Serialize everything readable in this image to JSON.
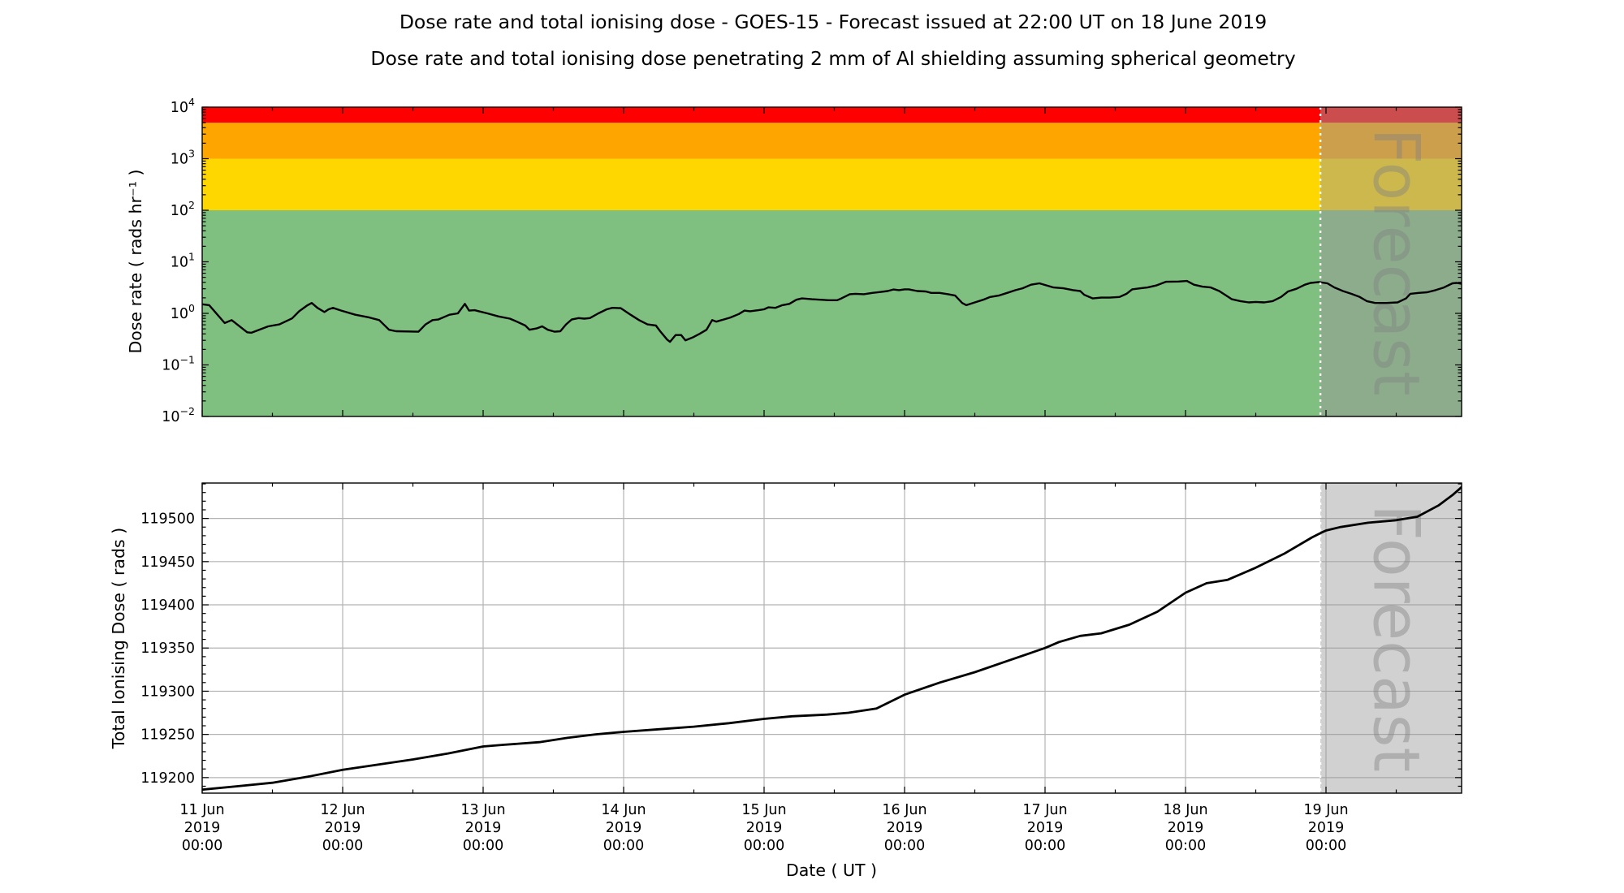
{
  "title_line1": "Dose rate and total ionising dose - GOES-15 - Forecast issued at 22:00 UT on 18 June 2019",
  "title_line2": "Dose rate and total ionising dose penetrating 2 mm of Al shielding assuming spherical geometry",
  "xlabel": "Date ( UT )",
  "top_panel": {
    "ylabel": "Dose rate ( rads hr⁻¹ )",
    "yscale": "log",
    "ytick_exponents": [
      -2,
      -1,
      0,
      1,
      2,
      3,
      4
    ],
    "bands": [
      {
        "name": "green-nominal",
        "from": 0.01,
        "to": 100,
        "color": "#7fbf7f"
      },
      {
        "name": "yellow-caution",
        "from": 100,
        "to": 1000,
        "color": "#ffd700"
      },
      {
        "name": "orange-warning",
        "from": 1000,
        "to": 5000,
        "color": "#ffa500"
      },
      {
        "name": "red-alert",
        "from": 5000,
        "to": 10000,
        "color": "#ff0000"
      }
    ],
    "watermark": "Forecast"
  },
  "bottom_panel": {
    "ylabel": "Total Ionising Dose ( rads )",
    "yticks": [
      119200,
      119250,
      119300,
      119350,
      119400,
      119450,
      119500
    ],
    "ylim": [
      119182,
      119541
    ],
    "grid": true,
    "watermark": "Forecast"
  },
  "x_axis": {
    "range_days": [
      0,
      8.97
    ],
    "minor_step_days": 0.5,
    "ticks": [
      {
        "t": 0,
        "lines": [
          "11 Jun",
          "2019",
          "00:00"
        ]
      },
      {
        "t": 1,
        "lines": [
          "12 Jun",
          "2019",
          "00:00"
        ]
      },
      {
        "t": 2,
        "lines": [
          "13 Jun",
          "2019",
          "00:00"
        ]
      },
      {
        "t": 3,
        "lines": [
          "14 Jun",
          "2019",
          "00:00"
        ]
      },
      {
        "t": 4,
        "lines": [
          "15 Jun",
          "2019",
          "00:00"
        ]
      },
      {
        "t": 5,
        "lines": [
          "16 Jun",
          "2019",
          "00:00"
        ]
      },
      {
        "t": 6,
        "lines": [
          "17 Jun",
          "2019",
          "00:00"
        ]
      },
      {
        "t": 7,
        "lines": [
          "18 Jun",
          "2019",
          "00:00"
        ]
      },
      {
        "t": 8,
        "lines": [
          "19 Jun",
          "2019",
          "00:00"
        ]
      }
    ]
  },
  "forecast": {
    "label": "Forecast",
    "start_t_days": 7.96,
    "end_t_days": 8.97
  },
  "colors": {
    "series_line": "#000000",
    "grid_line": "#b3b3b3",
    "forecast_overlay": "#999999",
    "watermark_text": "#808080",
    "forecast_divider": "#ffffff"
  },
  "chart_data": [
    {
      "type": "line",
      "panel": "top",
      "title": "Dose rate",
      "ylabel": "Dose rate ( rads hr⁻¹ )",
      "xlabel": "Date ( UT )",
      "yscale": "log",
      "ylim": [
        0.01,
        10000
      ],
      "x_unit": "days since 11 Jun 2019 00:00 UT",
      "xlim": [
        0,
        8.97
      ],
      "grid": false,
      "legend": "none",
      "threshold_bands": [
        {
          "label": "green",
          "from": 0.01,
          "to": 100
        },
        {
          "label": "yellow",
          "from": 100,
          "to": 1000
        },
        {
          "label": "orange",
          "from": 1000,
          "to": 5000
        },
        {
          "label": "red",
          "from": 5000,
          "to": 10000
        }
      ],
      "annotations": [
        {
          "type": "vline",
          "x": 7.96,
          "label": "forecast start"
        },
        {
          "type": "region",
          "from": 7.96,
          "to": 8.97,
          "label": "Forecast"
        }
      ],
      "series": [
        {
          "name": "GOES-15 dose rate ( rads hr⁻¹ )",
          "x": [
            0,
            0.05,
            0.16,
            0.21,
            0.32,
            0.35,
            0.47,
            0.55,
            0.64,
            0.69,
            0.75,
            0.78,
            0.82,
            0.87,
            0.9,
            0.93,
            0.99,
            1.09,
            1.19,
            1.26,
            1.33,
            1.38,
            1.54,
            1.59,
            1.64,
            1.68,
            1.76,
            1.82,
            1.87,
            1.9,
            1.94,
            1.97,
            2.03,
            2.11,
            2.19,
            2.24,
            2.3,
            2.33,
            2.38,
            2.42,
            2.46,
            2.51,
            2.55,
            2.59,
            2.63,
            2.68,
            2.72,
            2.76,
            2.82,
            2.88,
            2.92,
            2.98,
            3.05,
            3.11,
            3.17,
            3.23,
            3.26,
            3.31,
            3.33,
            3.37,
            3.41,
            3.44,
            3.49,
            3.54,
            3.59,
            3.63,
            3.66,
            3.76,
            3.82,
            3.86,
            3.9,
            3.96,
            4,
            4.03,
            4.08,
            4.13,
            4.18,
            4.23,
            4.27,
            4.34,
            4.4,
            4.46,
            4.52,
            4.55,
            4.61,
            4.65,
            4.71,
            4.77,
            4.82,
            4.88,
            4.92,
            4.96,
            5,
            5.03,
            5.09,
            5.15,
            5.19,
            5.25,
            5.31,
            5.36,
            5.41,
            5.44,
            5.5,
            5.56,
            5.61,
            5.67,
            5.73,
            5.79,
            5.84,
            5.9,
            5.96,
            6.06,
            6.13,
            6.2,
            6.25,
            6.28,
            6.34,
            6.4,
            6.46,
            6.53,
            6.58,
            6.62,
            6.68,
            6.73,
            6.79,
            6.86,
            6.95,
            7.01,
            7.06,
            7.12,
            7.18,
            7.24,
            7.29,
            7.33,
            7.39,
            7.45,
            7.5,
            7.56,
            7.62,
            7.68,
            7.73,
            7.79,
            7.85,
            7.89,
            7.95,
            8.01,
            8.06,
            8.12,
            8.18,
            8.24,
            8.29,
            8.35,
            8.43,
            8.51,
            8.57,
            8.6,
            8.66,
            8.72,
            8.78,
            8.84,
            8.9,
            8.93,
            8.97
          ],
          "y": [
            1.5,
            1.44,
            0.65,
            0.74,
            0.43,
            0.42,
            0.56,
            0.61,
            0.8,
            1.1,
            1.44,
            1.59,
            1.28,
            1.06,
            1.2,
            1.28,
            1.13,
            0.94,
            0.83,
            0.74,
            0.48,
            0.45,
            0.44,
            0.61,
            0.74,
            0.76,
            0.94,
            1,
            1.53,
            1.13,
            1.15,
            1.1,
            1,
            0.87,
            0.79,
            0.69,
            0.58,
            0.48,
            0.51,
            0.56,
            0.48,
            0.44,
            0.45,
            0.61,
            0.76,
            0.81,
            0.79,
            0.81,
            1,
            1.2,
            1.28,
            1.26,
            0.94,
            0.74,
            0.61,
            0.58,
            0.45,
            0.31,
            0.28,
            0.38,
            0.38,
            0.3,
            0.34,
            0.4,
            0.48,
            0.74,
            0.69,
            0.83,
            0.97,
            1.13,
            1.1,
            1.15,
            1.2,
            1.31,
            1.28,
            1.44,
            1.53,
            1.84,
            1.95,
            1.88,
            1.84,
            1.8,
            1.8,
            1.95,
            2.35,
            2.4,
            2.35,
            2.49,
            2.59,
            2.71,
            2.9,
            2.82,
            2.92,
            2.92,
            2.71,
            2.66,
            2.49,
            2.49,
            2.35,
            2.21,
            1.59,
            1.44,
            1.63,
            1.84,
            2.08,
            2.21,
            2.49,
            2.82,
            3.07,
            3.6,
            3.83,
            3.18,
            3.07,
            2.82,
            2.71,
            2.29,
            1.95,
            2.02,
            2.02,
            2.08,
            2.4,
            2.92,
            3.07,
            3.18,
            3.47,
            4.1,
            4.15,
            4.25,
            3.6,
            3.3,
            3.18,
            2.71,
            2.21,
            1.88,
            1.73,
            1.63,
            1.67,
            1.63,
            1.73,
            2.08,
            2.66,
            3,
            3.6,
            3.9,
            4.05,
            3.83,
            3.18,
            2.71,
            2.4,
            2.08,
            1.73,
            1.59,
            1.59,
            1.63,
            1.95,
            2.4,
            2.49,
            2.57,
            2.82,
            3.18,
            3.83,
            3.9,
            3.73
          ]
        }
      ]
    },
    {
      "type": "line",
      "panel": "bottom",
      "title": "Total ionising dose",
      "ylabel": "Total Ionising Dose ( rads )",
      "xlabel": "Date ( UT )",
      "yscale": "linear",
      "ylim": [
        119182,
        119541
      ],
      "yticks": [
        119200,
        119250,
        119300,
        119350,
        119400,
        119450,
        119500
      ],
      "x_unit": "days since 11 Jun 2019 00:00 UT",
      "xlim": [
        0,
        8.97
      ],
      "grid": true,
      "legend": "none",
      "annotations": [
        {
          "type": "vline",
          "x": 7.96,
          "label": "forecast start"
        },
        {
          "type": "region",
          "from": 7.96,
          "to": 8.97,
          "label": "Forecast"
        }
      ],
      "series": [
        {
          "name": "GOES-15 total ionising dose ( rads )",
          "x": [
            0,
            0.25,
            0.5,
            0.75,
            1,
            1.25,
            1.5,
            1.75,
            2,
            2.15,
            2.4,
            2.6,
            2.8,
            3,
            3.25,
            3.5,
            3.75,
            4,
            4.2,
            4.45,
            4.6,
            4.8,
            5,
            5.25,
            5.5,
            5.75,
            6,
            6.1,
            6.25,
            6.4,
            6.6,
            6.8,
            7,
            7.15,
            7.3,
            7.5,
            7.7,
            7.9,
            7.96,
            8,
            8.1,
            8.3,
            8.5,
            8.65,
            8.8,
            8.9,
            8.97
          ],
          "y": [
            119186,
            119190,
            119194,
            119201,
            119209,
            119215,
            119221,
            119228,
            119236,
            119238,
            119241,
            119246,
            119250,
            119253,
            119256,
            119259,
            119263,
            119268,
            119271,
            119273,
            119275,
            119280,
            119296,
            119310,
            119322,
            119336,
            119350,
            119357,
            119364,
            119367,
            119377,
            119392,
            119414,
            119425,
            119429,
            119443,
            119459,
            119478,
            119483,
            119486,
            119490,
            119495,
            119498,
            119502,
            119515,
            119527,
            119537
          ]
        }
      ]
    }
  ]
}
